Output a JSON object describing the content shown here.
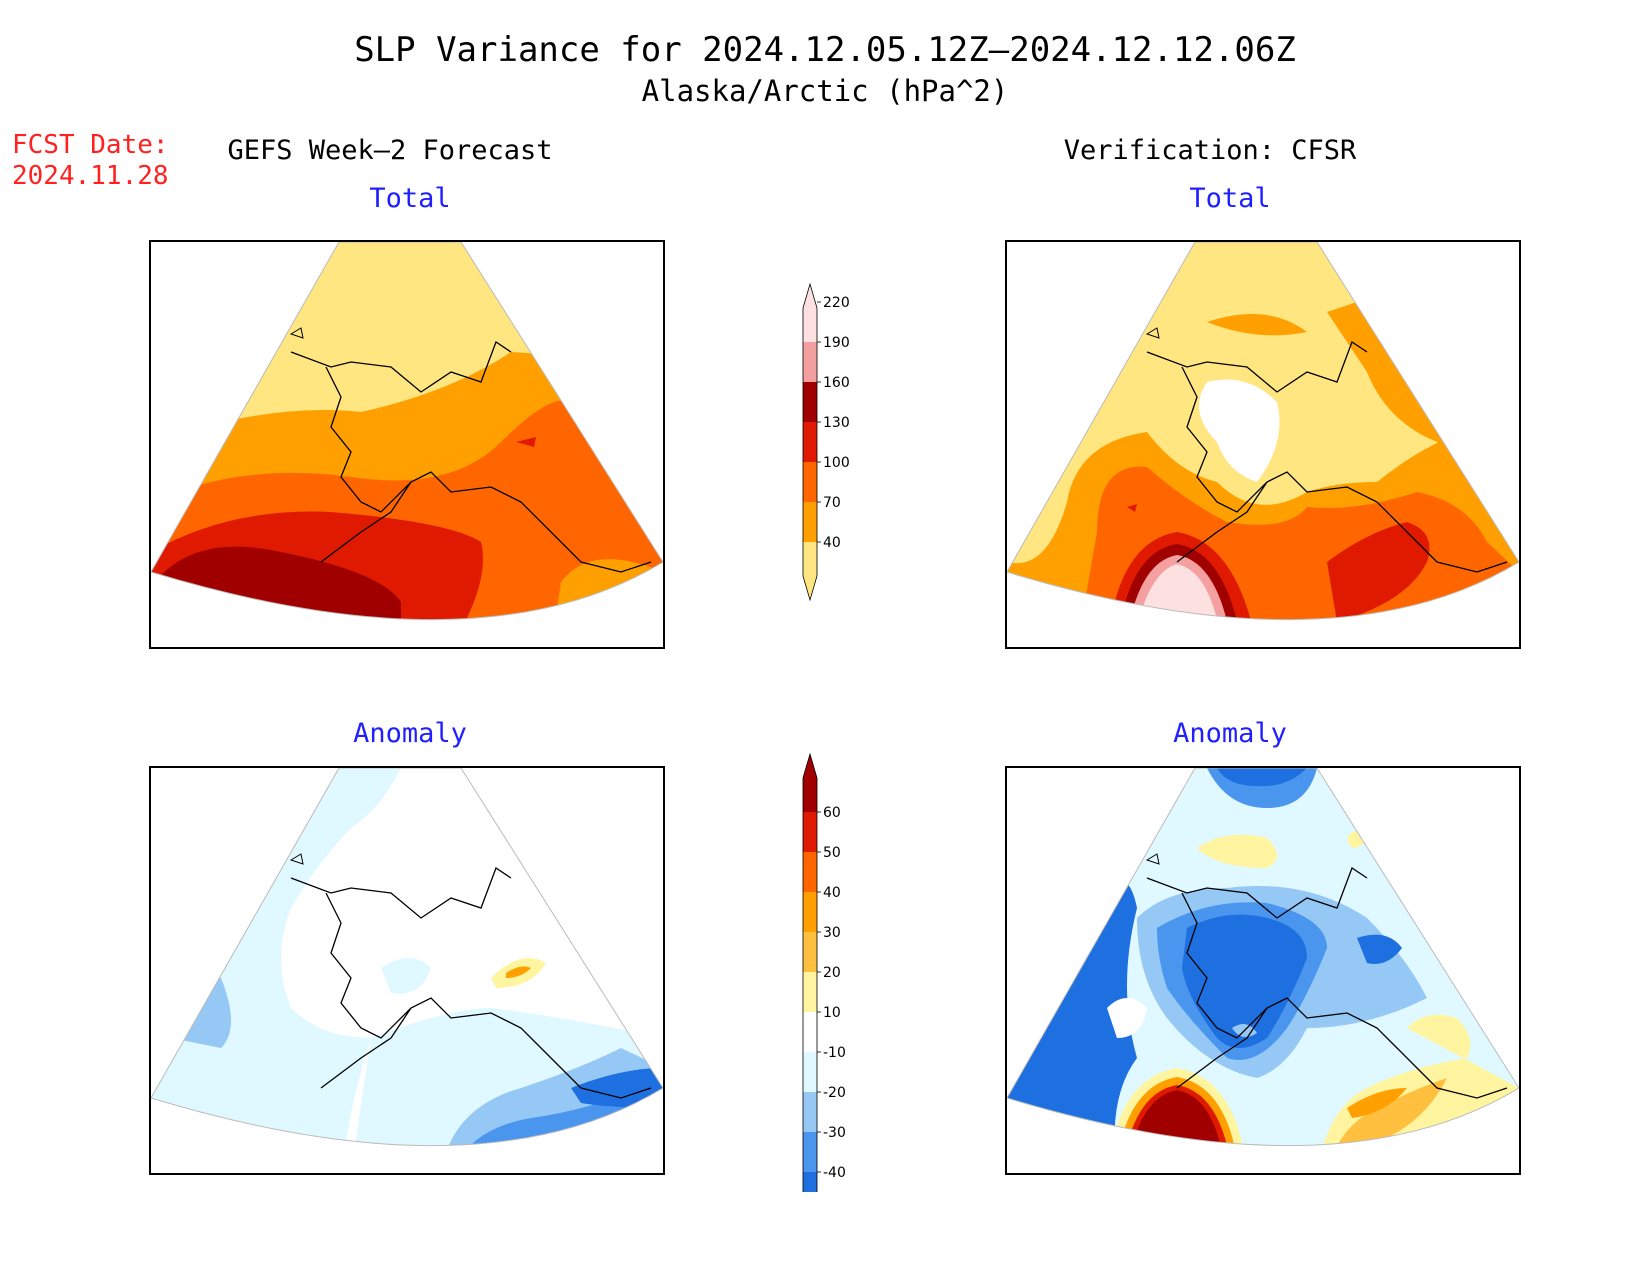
{
  "title": "SLP Variance for 2024.12.05.12Z–2024.12.12.06Z",
  "subtitle": "Alaska/Arctic (hPa^2)",
  "fcst_date_label": "FCST Date:",
  "fcst_date_value": "2024.11.28",
  "left_column_title": "GEFS Week–2 Forecast",
  "right_column_title": "Verification: CFSR",
  "panels": {
    "top_left": "Total",
    "top_right": "Total",
    "bottom_left": "Anomaly",
    "bottom_right": "Anomaly"
  },
  "total_colorbar": {
    "levels": [
      "40",
      "70",
      "100",
      "130",
      "160",
      "190",
      "220"
    ],
    "colors": [
      "#ffe680",
      "#ffa000",
      "#ff6600",
      "#e01a00",
      "#a00000",
      "#f5a0a0",
      "#fde0e0"
    ]
  },
  "anomaly_colorbar": {
    "levels": [
      "-40",
      "-30",
      "-20",
      "-10",
      "10",
      "20",
      "30",
      "40",
      "50",
      "60"
    ],
    "colors": [
      "#1e6fe0",
      "#4a96ee",
      "#96c8f6",
      "#e0f8ff",
      "#ffffff",
      "#fff5a0",
      "#ffc040",
      "#ffa000",
      "#ff6600",
      "#e01a00",
      "#a00000"
    ]
  }
}
